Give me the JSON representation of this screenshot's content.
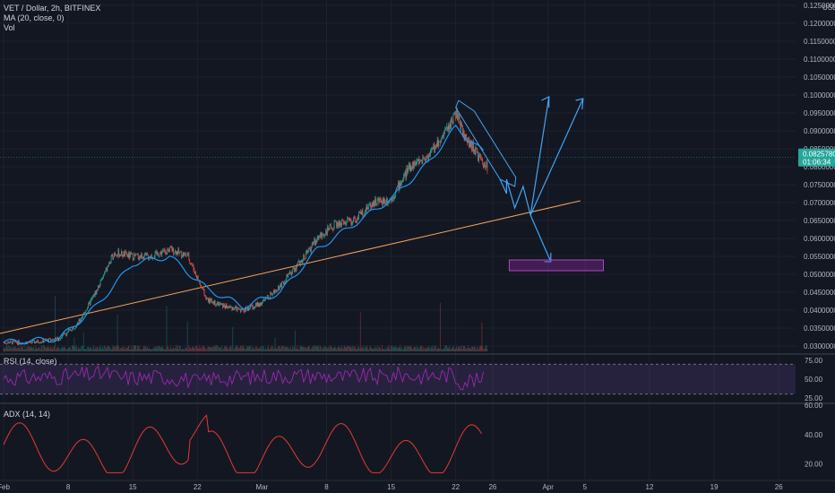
{
  "header": {
    "symbol_line": "VET / Dollar, 2h, BITFINEX",
    "ma_line": "MA (20, close, 0)",
    "vol_line": "Vol",
    "rsi_line": "RSI (14, close)",
    "adx_line": "ADX (14, 14)"
  },
  "colors": {
    "background": "#131722",
    "grid": "#1e222d",
    "candle_up": "#26a69a",
    "candle_down": "#ef5350",
    "ma": "#2196f3",
    "trendline": "#f7a35c",
    "projection": "#42a5f5",
    "target_box": "#9c27b0",
    "rsi": "#9c27b0",
    "adx": "#e53935"
  },
  "price_axis": {
    "currency": "USD",
    "ticks": [
      "0.12500000",
      "0.12000000",
      "0.11500000",
      "0.11000000",
      "0.10500000",
      "0.10000000",
      "0.09500000",
      "0.09000000",
      "0.08500000",
      "0.08000000",
      "0.07500000",
      "0.07000000",
      "0.06500000",
      "0.06000000",
      "0.05500000",
      "0.05000000",
      "0.04500000",
      "0.04000000",
      "0.03500000",
      "0.03000000"
    ],
    "current_price": "0.08257800",
    "countdown": "01:06:34"
  },
  "rsi_axis": {
    "ticks": [
      "75.00",
      "50.00",
      "25.00"
    ]
  },
  "adx_axis": {
    "ticks": [
      "60.00",
      "40.00",
      "20.00"
    ]
  },
  "time_axis": {
    "labels": [
      "Feb",
      "8",
      "15",
      "22",
      "Mar",
      "8",
      "15",
      "22",
      "26",
      "Apr",
      "5",
      "12",
      "19",
      "26"
    ]
  },
  "chart_data": {
    "type": "candlestick",
    "symbol": "VET / Dollar",
    "interval": "2h",
    "exchange": "BITFINEX",
    "price_range": [
      0.029,
      0.127
    ],
    "series": [
      {
        "name": "price_close",
        "x": [
          "Feb 1",
          "Feb 4",
          "Feb 7",
          "Feb 9",
          "Feb 11",
          "Feb 13",
          "Feb 15",
          "Feb 17",
          "Feb 19",
          "Feb 21",
          "Feb 23",
          "Feb 25",
          "Feb 27",
          "Mar 1",
          "Mar 3",
          "Mar 5",
          "Mar 7",
          "Mar 9",
          "Mar 11",
          "Mar 13",
          "Mar 15",
          "Mar 17",
          "Mar 19",
          "Mar 21",
          "Mar 22",
          "Mar 23",
          "Mar 24",
          "Mar 25"
        ],
        "y": [
          0.031,
          0.031,
          0.032,
          0.036,
          0.045,
          0.056,
          0.055,
          0.055,
          0.057,
          0.055,
          0.043,
          0.041,
          0.04,
          0.042,
          0.047,
          0.053,
          0.06,
          0.064,
          0.065,
          0.07,
          0.071,
          0.08,
          0.083,
          0.09,
          0.095,
          0.088,
          0.085,
          0.08
        ]
      },
      {
        "name": "MA (20, close, 0)",
        "x": [
          "Feb 1",
          "Feb 7",
          "Feb 11",
          "Feb 15",
          "Feb 19",
          "Feb 23",
          "Feb 27",
          "Mar 3",
          "Mar 7",
          "Mar 11",
          "Mar 15",
          "Mar 19",
          "Mar 22",
          "Mar 25"
        ],
        "y": [
          0.031,
          0.032,
          0.041,
          0.053,
          0.055,
          0.046,
          0.041,
          0.045,
          0.057,
          0.064,
          0.071,
          0.081,
          0.091,
          0.084
        ]
      }
    ],
    "annotations": {
      "current_price": 0.082578,
      "target_zone": [
        0.051,
        0.054
      ]
    },
    "rsi": {
      "upper_band": 70,
      "lower_band": 30,
      "range": [
        20,
        80
      ]
    },
    "adx": {
      "range": [
        10,
        60
      ]
    }
  }
}
